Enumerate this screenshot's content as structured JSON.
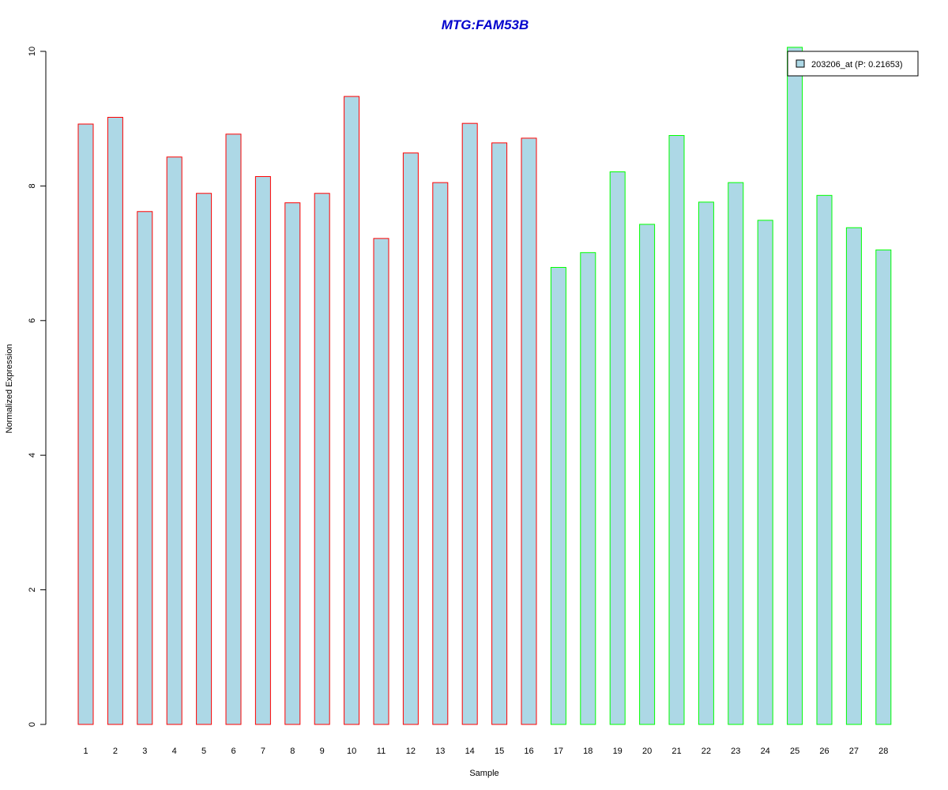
{
  "chart_data": {
    "type": "bar",
    "title": "MTG:FAM53B",
    "xlabel": "Sample",
    "ylabel": "Normalized Expression",
    "ylim": [
      0,
      10
    ],
    "yticks": [
      0,
      2,
      4,
      6,
      8,
      10
    ],
    "categories": [
      "1",
      "2",
      "3",
      "4",
      "5",
      "6",
      "7",
      "8",
      "9",
      "10",
      "11",
      "12",
      "13",
      "14",
      "15",
      "16",
      "17",
      "18",
      "19",
      "20",
      "21",
      "22",
      "23",
      "24",
      "25",
      "26",
      "27",
      "28"
    ],
    "series": [
      {
        "name": "203206_at (P: 0.21653)",
        "values": [
          8.92,
          9.02,
          7.62,
          8.43,
          7.89,
          8.77,
          8.14,
          7.75,
          7.89,
          9.33,
          7.22,
          8.49,
          8.05,
          8.93,
          8.64,
          8.71,
          6.79,
          7.01,
          8.21,
          7.43,
          8.75,
          7.76,
          8.05,
          7.49,
          10.06,
          7.86,
          7.38,
          7.05
        ]
      }
    ],
    "bar_fill": "#add8e6",
    "group_colors": [
      "#ff0000",
      "#00ff00"
    ],
    "groups": [
      1,
      1,
      1,
      1,
      1,
      1,
      1,
      1,
      1,
      1,
      1,
      1,
      1,
      1,
      1,
      1,
      2,
      2,
      2,
      2,
      2,
      2,
      2,
      2,
      2,
      2,
      2,
      2
    ],
    "title_color": "#0000cd",
    "legend_placement": "top-right",
    "grid": false
  }
}
